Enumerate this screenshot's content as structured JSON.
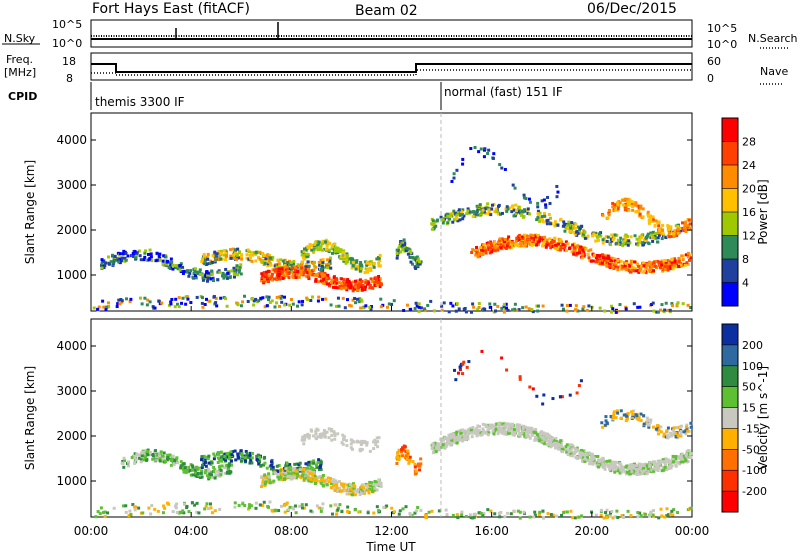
{
  "header": {
    "station": "Fort Hays East (fitACF)",
    "beam": "Beam 02",
    "date": "06/Dec/2015"
  },
  "top_panels": {
    "nsky_label": "N.Sky",
    "nsearch_label": "N.Search",
    "nsky_ticks": [
      "10^5",
      "10^0"
    ],
    "nsearch_ticks": [
      "10^5",
      "10^0"
    ],
    "freq_label": "Freq.",
    "freq_unit": "[MHz]",
    "freq_ticks": [
      "18",
      "8"
    ],
    "nave_label": "Nave",
    "nave_ticks": [
      "60",
      "0"
    ],
    "cpid_label": "CPID",
    "cpid_modes": [
      "themis 3300 IF",
      "normal (fast) 151 IF"
    ]
  },
  "chart_data": [
    {
      "type": "heatmap",
      "panel": "power",
      "ylabel": "Slant Range [km]",
      "yticks": [
        1000,
        2000,
        3000,
        4000
      ],
      "ylim": [
        200,
        4600
      ],
      "colorbar_label": "Power [dB]",
      "colorbar_ticks": [
        28,
        24,
        20,
        16,
        12,
        8,
        4
      ],
      "colors": [
        "#ff0000",
        "#ff4000",
        "#ff8c00",
        "#ffc000",
        "#a0c800",
        "#2e8b57",
        "#2040a0",
        "#0000ff"
      ],
      "xticks": [
        "00:00",
        "04:00",
        "08:00",
        "12:00",
        "16:00",
        "20:00",
        "00:00"
      ]
    },
    {
      "type": "heatmap",
      "panel": "velocity",
      "ylabel": "Slant Range [km]",
      "yticks": [
        1000,
        2000,
        3000,
        4000
      ],
      "ylim": [
        200,
        4600
      ],
      "colorbar_label": "Velocity [m s^-1]",
      "colorbar_ticks": [
        200,
        100,
        50,
        15,
        -15,
        -50,
        -100,
        -200
      ],
      "colors": [
        "#0b2fa0",
        "#2e6aa0",
        "#2e8b40",
        "#5cc030",
        "#c8c8c0",
        "#ffb000",
        "#ff7000",
        "#ff3000",
        "#ff0000"
      ],
      "xticks": [
        "00:00",
        "04:00",
        "08:00",
        "12:00",
        "16:00",
        "20:00",
        "00:00"
      ],
      "xlabel": "Time UT"
    }
  ]
}
